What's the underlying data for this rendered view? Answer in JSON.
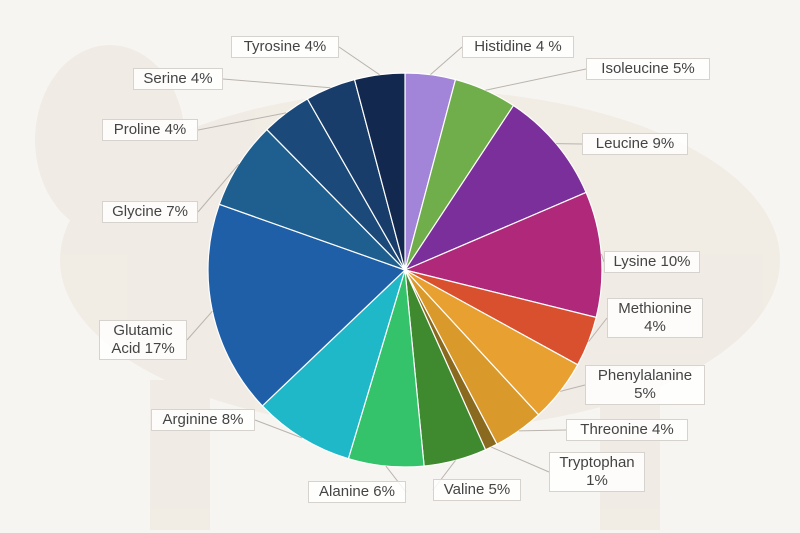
{
  "chart_data": {
    "type": "pie",
    "categories": [
      "Histidine 4 %",
      "Isoleucine 5%",
      "Leucine 9%",
      "Lysine 10%",
      "Methionine 4%",
      "Phenylalanine 5%",
      "Threonine 4%",
      "Tryptophan 1%",
      "Valine 5%",
      "Alanine 6%",
      "Arginine 8%",
      "Glutamic Acid 17%",
      "Glycine 7%",
      "Proline 4%",
      "Serine 4%",
      "Tyrosine 4%"
    ],
    "values": [
      4,
      5,
      9,
      10,
      4,
      5,
      4,
      1,
      5,
      6,
      8,
      17,
      7,
      4,
      4,
      4
    ],
    "colors": [
      "#a284d8",
      "#6fae4a",
      "#7b2f9a",
      "#b0287a",
      "#d9502e",
      "#e8a030",
      "#d99a2b",
      "#8a6a1e",
      "#3f8a2e",
      "#34c26a",
      "#1fb8c8",
      "#1f5fa8",
      "#1e5f8f",
      "#1b4a7a",
      "#183d6a",
      "#13284e"
    ]
  }
}
